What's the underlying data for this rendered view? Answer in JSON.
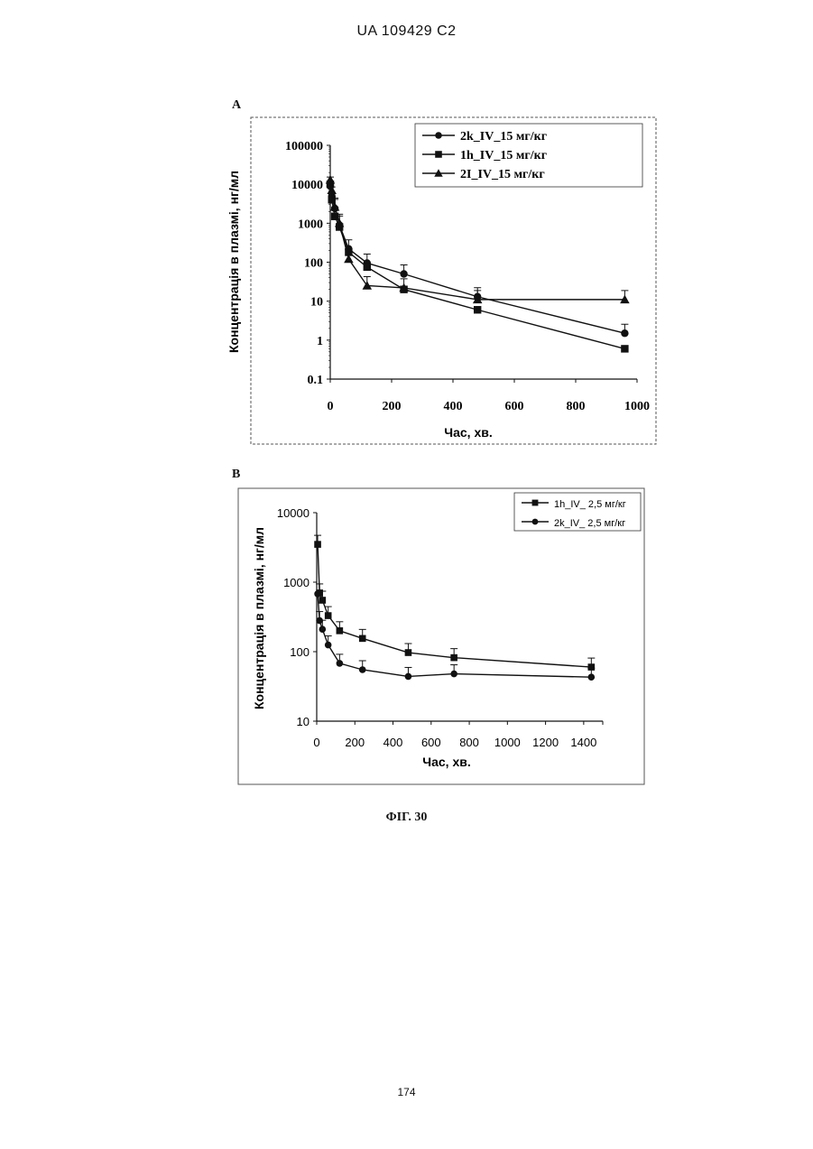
{
  "header": {
    "patent_id": "UA   109429   C2"
  },
  "footer": {
    "page_number": "174"
  },
  "figure": {
    "caption": "ФІГ. 30"
  },
  "chart_data": [
    {
      "panel": "A",
      "type": "line",
      "yscale": "log",
      "xlabel": "Час, хв.",
      "ylabel": "Концентрація в плазмі, нг/мл",
      "xlim": [
        0,
        1000
      ],
      "ylim": [
        0.1,
        100000
      ],
      "xticks": [
        "0",
        "200",
        "400",
        "600",
        "800",
        "1000"
      ],
      "yticks": [
        "0.1",
        "1",
        "10",
        "100",
        "1000",
        "10000",
        "100000"
      ],
      "legend_position": "top-right",
      "series": [
        {
          "name": "2k_IV_15 мг/кг",
          "marker": "circle",
          "x": [
            0,
            5,
            15,
            30,
            60,
            120,
            240,
            480,
            960
          ],
          "y": [
            9000,
            5000,
            2400,
            900,
            220,
            95,
            50,
            13,
            1.5
          ],
          "err": [
            1,
            1,
            1,
            1,
            1,
            1,
            1,
            1,
            1
          ]
        },
        {
          "name": "1h_IV_15 мг/кг",
          "marker": "square",
          "x": [
            0,
            5,
            15,
            30,
            60,
            120,
            240,
            480,
            960
          ],
          "y": [
            10000,
            4000,
            1500,
            800,
            180,
            75,
            20,
            6,
            0.6
          ],
          "err": [
            0,
            0,
            0,
            0,
            0,
            0,
            0,
            0,
            0
          ]
        },
        {
          "name": "2I_IV_15 мг/кг",
          "marker": "triangle",
          "x": [
            0,
            5,
            15,
            30,
            60,
            120,
            240,
            480,
            960
          ],
          "y": [
            13000,
            7000,
            2600,
            1000,
            120,
            25,
            22,
            11,
            11
          ],
          "err": [
            0,
            0,
            1,
            1,
            0,
            1,
            1,
            1,
            1
          ]
        }
      ]
    },
    {
      "panel": "B",
      "type": "line",
      "yscale": "log",
      "xlabel": "Час, хв.",
      "ylabel": "Концентрація в плазмі, нг/мл",
      "xlim": [
        0,
        1500
      ],
      "ylim": [
        10,
        10000
      ],
      "xticks": [
        "0",
        "200",
        "400",
        "600",
        "800",
        "1000",
        "1200",
        "1400"
      ],
      "yticks": [
        "10",
        "100",
        "1000",
        "10000"
      ],
      "legend_position": "top-right",
      "series": [
        {
          "name": "1h_IV_ 2,5 мг/кг",
          "marker": "square",
          "x": [
            5,
            15,
            30,
            60,
            120,
            240,
            480,
            720,
            1440
          ],
          "y": [
            3500,
            700,
            550,
            330,
            200,
            155,
            97,
            82,
            60
          ],
          "err": [
            1,
            1,
            1,
            1,
            1,
            1,
            1,
            1,
            1
          ]
        },
        {
          "name": "2k_IV_ 2,5 мг/кг",
          "marker": "circle",
          "x": [
            5,
            15,
            30,
            60,
            120,
            240,
            480,
            720,
            1440
          ],
          "y": [
            680,
            280,
            210,
            125,
            68,
            55,
            44,
            48,
            43
          ],
          "err": [
            0,
            1,
            1,
            1,
            1,
            1,
            1,
            1,
            1
          ]
        }
      ]
    }
  ]
}
